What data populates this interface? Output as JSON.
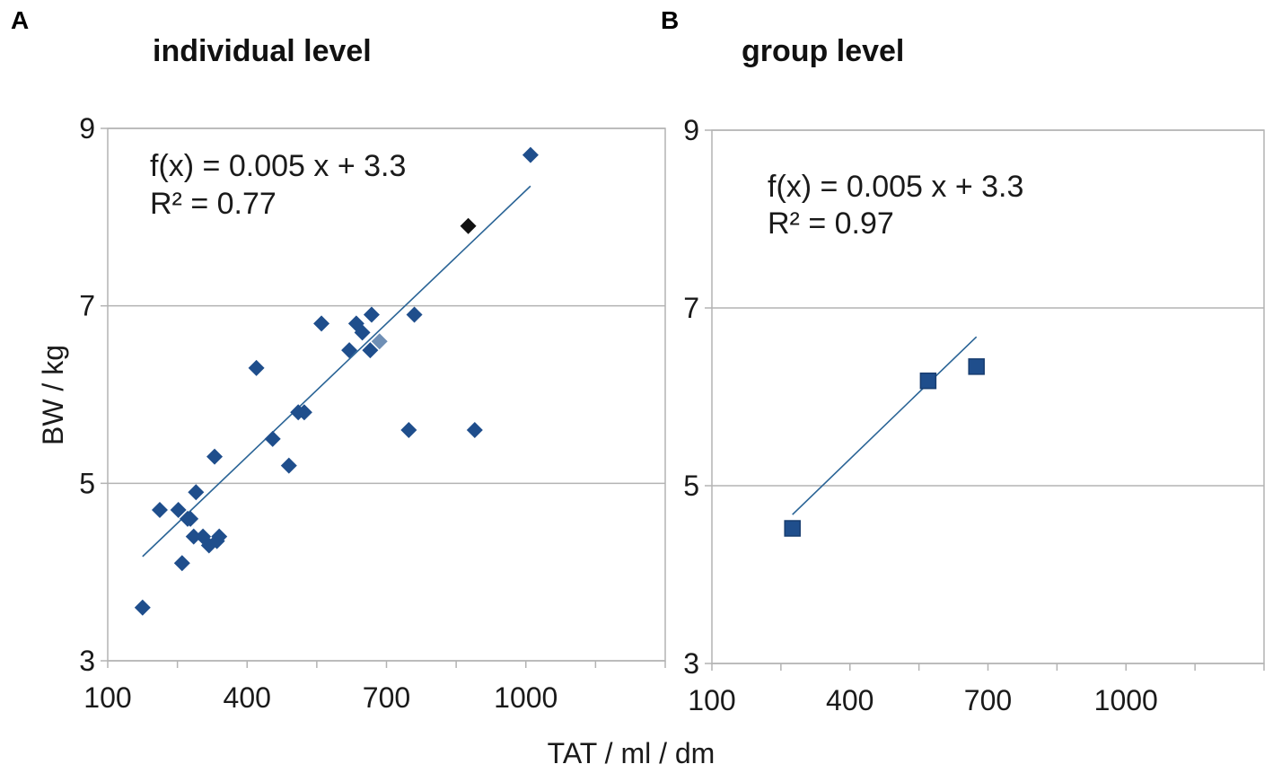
{
  "figure": {
    "x_axis_title": "TAT / ml / dm",
    "y_axis_title": "BW / kg"
  },
  "chart_data": [
    {
      "type": "scatter",
      "panel_letter": "A",
      "title": "individual level",
      "xlabel": "TAT / ml / dm",
      "ylabel": "BW / kg",
      "xlim": [
        100,
        1300
      ],
      "ylim": [
        3,
        9
      ],
      "xticks": [
        100,
        400,
        700,
        1000
      ],
      "yticks": [
        3,
        5,
        7,
        9
      ],
      "grid": "horizontal",
      "marker": "diamond",
      "colors": {
        "points": "#1f4e8c",
        "trend": "#2a6496",
        "grid": "#b3b3b3"
      },
      "equation": "f(x) = 0.005 x + 3.3",
      "r_squared": "R² = 0.77",
      "trendline": {
        "slope": 0.005,
        "intercept": 3.3,
        "x_range": [
          175,
          1010
        ]
      },
      "points": [
        {
          "x": 175,
          "y": 3.6
        },
        {
          "x": 212,
          "y": 4.7
        },
        {
          "x": 252,
          "y": 4.7
        },
        {
          "x": 260,
          "y": 4.1
        },
        {
          "x": 272,
          "y": 4.6
        },
        {
          "x": 278,
          "y": 4.6
        },
        {
          "x": 285,
          "y": 4.4
        },
        {
          "x": 290,
          "y": 4.9
        },
        {
          "x": 305,
          "y": 4.4
        },
        {
          "x": 318,
          "y": 4.3
        },
        {
          "x": 330,
          "y": 5.3
        },
        {
          "x": 335,
          "y": 4.35
        },
        {
          "x": 340,
          "y": 4.4
        },
        {
          "x": 420,
          "y": 6.3
        },
        {
          "x": 455,
          "y": 5.5
        },
        {
          "x": 490,
          "y": 5.2
        },
        {
          "x": 510,
          "y": 5.8
        },
        {
          "x": 523,
          "y": 5.8
        },
        {
          "x": 560,
          "y": 6.8
        },
        {
          "x": 620,
          "y": 6.5
        },
        {
          "x": 635,
          "y": 6.8
        },
        {
          "x": 648,
          "y": 6.7
        },
        {
          "x": 665,
          "y": 6.5
        },
        {
          "x": 668,
          "y": 6.9
        },
        {
          "x": 685,
          "y": 6.6,
          "color": "#6f8fb5"
        },
        {
          "x": 748,
          "y": 5.6
        },
        {
          "x": 760,
          "y": 6.9
        },
        {
          "x": 876,
          "y": 7.9,
          "color": "#111111"
        },
        {
          "x": 890,
          "y": 5.6
        },
        {
          "x": 1010,
          "y": 8.7
        }
      ]
    },
    {
      "type": "scatter",
      "panel_letter": "B",
      "title": "group level",
      "xlabel": "TAT / ml / dm",
      "ylabel": "BW / kg",
      "xlim": [
        100,
        1300
      ],
      "ylim": [
        3,
        9
      ],
      "xticks": [
        100,
        400,
        700,
        1000
      ],
      "yticks": [
        3,
        5,
        7,
        9
      ],
      "grid": "horizontal",
      "marker": "square",
      "colors": {
        "points": "#1f4e8c",
        "trend": "#2a6496",
        "grid": "#b3b3b3"
      },
      "equation": "f(x) = 0.005 x + 3.3",
      "r_squared": "R² = 0.97",
      "trendline": {
        "slope": 0.005,
        "intercept": 3.3,
        "x_range": [
          275,
          675
        ]
      },
      "points": [
        {
          "x": 275,
          "y": 4.52
        },
        {
          "x": 570,
          "y": 6.18
        },
        {
          "x": 675,
          "y": 6.34
        }
      ]
    }
  ]
}
